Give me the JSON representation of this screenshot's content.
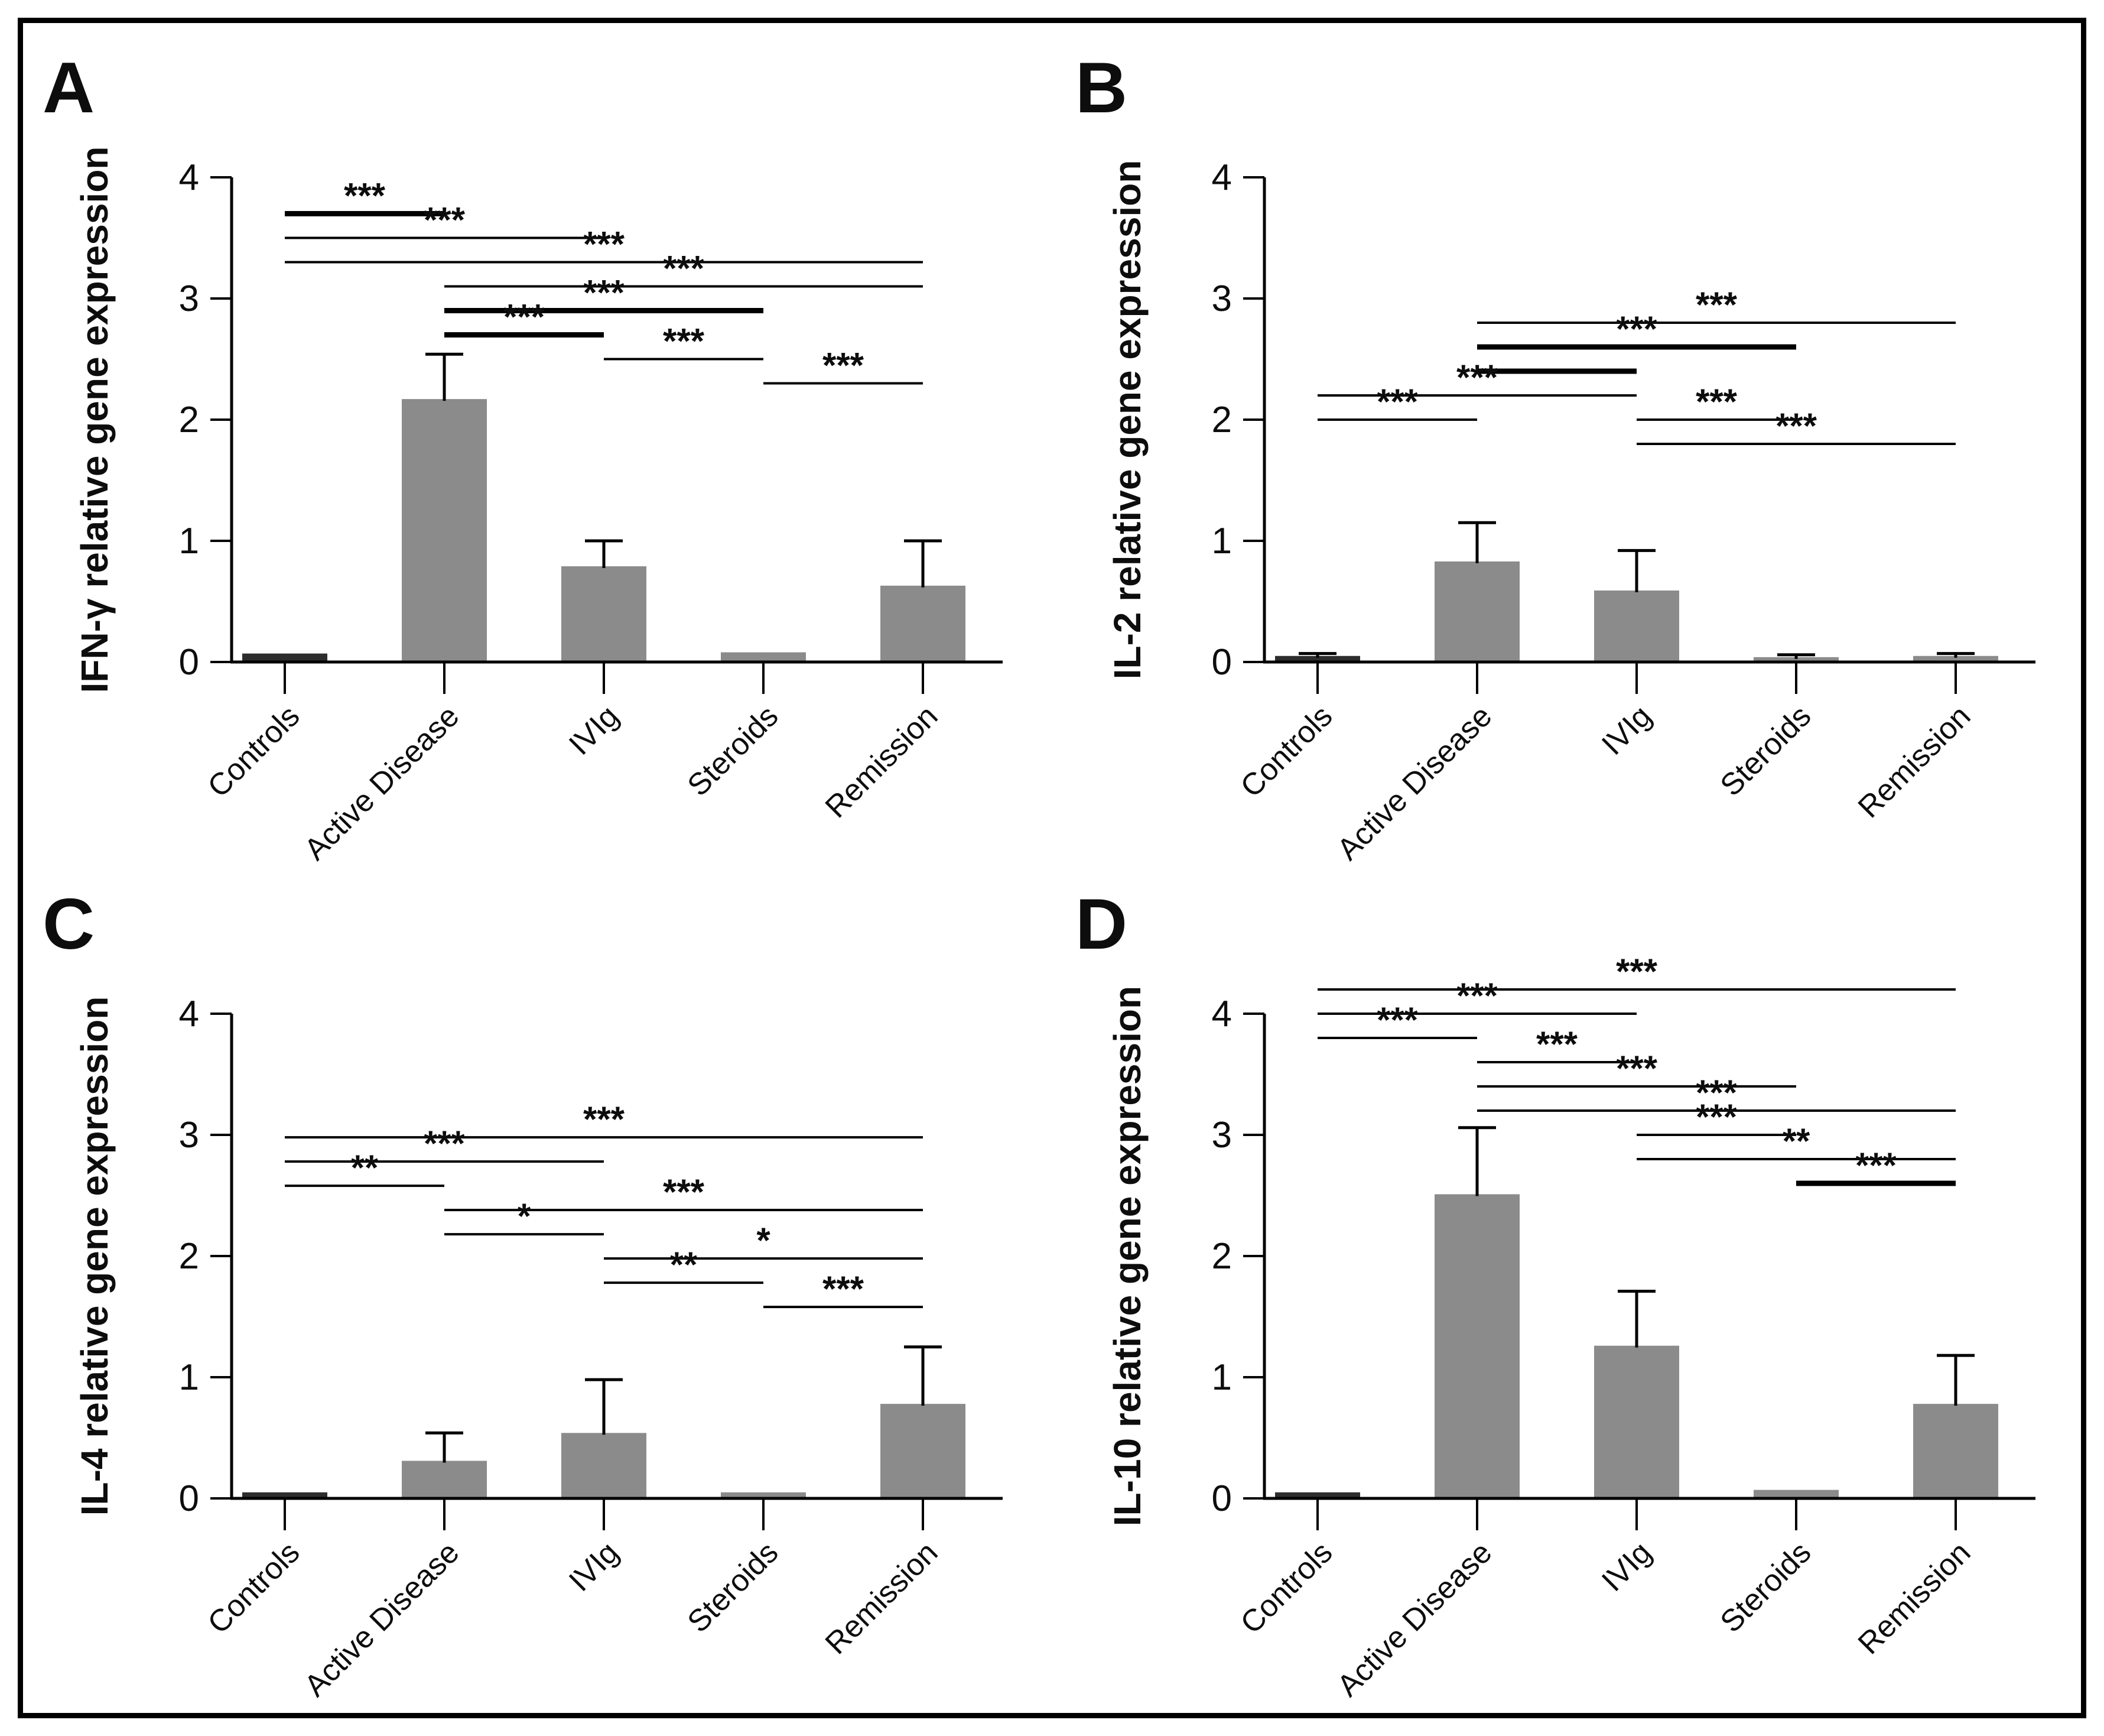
{
  "figure_style": {
    "bar_color": "#8b8b8b",
    "controls_bar_color": "#2d2d2d",
    "axis_color": "#000000",
    "text_color": "#0d0d0d",
    "background_color": "#ffffff"
  },
  "chart_data": [
    {
      "type": "bar",
      "panel": "A",
      "title": "",
      "ylabel": "IFN-γ relative gene expression",
      "xlabel": "",
      "ylim": [
        0,
        4
      ],
      "yticks": [
        "0",
        "1",
        "2",
        "3",
        "4"
      ],
      "grid": false,
      "categories": [
        "Controls",
        "Active Disease",
        "IVIg",
        "Steroids",
        "Remission"
      ],
      "values": [
        0.07,
        2.17,
        0.79,
        0.08,
        0.63
      ],
      "error_top": [
        null,
        2.54,
        1.0,
        null,
        1.0
      ],
      "significance": [
        {
          "between": [
            "Controls",
            "Active Disease"
          ],
          "from": 0,
          "to": 1,
          "y": 3.7,
          "label": "***",
          "thick": true
        },
        {
          "between": [
            "Controls",
            "IVIg"
          ],
          "from": 0,
          "to": 2,
          "y": 3.5,
          "label": "***",
          "thick": false
        },
        {
          "between": [
            "Controls",
            "Remission"
          ],
          "from": 0,
          "to": 4,
          "y": 3.3,
          "label": "***",
          "thick": false
        },
        {
          "between": [
            "Active Disease",
            "Remission"
          ],
          "from": 1,
          "to": 4,
          "y": 3.1,
          "label": "***",
          "thick": false
        },
        {
          "between": [
            "Active Disease",
            "Steroids"
          ],
          "from": 1,
          "to": 3,
          "y": 2.9,
          "label": "***",
          "thick": true
        },
        {
          "between": [
            "Active Disease",
            "IVIg"
          ],
          "from": 1,
          "to": 2,
          "y": 2.7,
          "label": "***",
          "thick": true
        },
        {
          "between": [
            "IVIg",
            "Steroids"
          ],
          "from": 2,
          "to": 3,
          "y": 2.5,
          "label": "***",
          "thick": false
        },
        {
          "between": [
            "Steroids",
            "Remission"
          ],
          "from": 3,
          "to": 4,
          "y": 2.3,
          "label": "***",
          "thick": false
        }
      ]
    },
    {
      "type": "bar",
      "panel": "B",
      "title": "",
      "ylabel": "IL-2 relative gene expression",
      "xlabel": "",
      "ylim": [
        0,
        4
      ],
      "yticks": [
        "0",
        "1",
        "2",
        "3",
        "4"
      ],
      "grid": false,
      "categories": [
        "Controls",
        "Active Disease",
        "IVIg",
        "Steroids",
        "Remission"
      ],
      "values": [
        0.05,
        0.83,
        0.59,
        0.04,
        0.05
      ],
      "error_top": [
        0.07,
        1.15,
        0.92,
        0.06,
        0.07
      ],
      "significance": [
        {
          "between": [
            "Active Disease",
            "Remission"
          ],
          "from": 1,
          "to": 4,
          "y": 2.8,
          "label": "***",
          "thick": false
        },
        {
          "between": [
            "Active Disease",
            "Steroids"
          ],
          "from": 1,
          "to": 3,
          "y": 2.6,
          "label": "***",
          "thick": true
        },
        {
          "between": [
            "Active Disease",
            "IVIg"
          ],
          "from": 1,
          "to": 2,
          "y": 2.4,
          "label": "",
          "thick": true
        },
        {
          "between": [
            "Controls",
            "IVIg"
          ],
          "from": 0,
          "to": 2,
          "y": 2.2,
          "label": "***",
          "thick": false
        },
        {
          "between": [
            "Controls",
            "Active Disease"
          ],
          "from": 0,
          "to": 1,
          "y": 2.0,
          "label": "***",
          "thick": false
        },
        {
          "between": [
            "IVIg",
            "Steroids"
          ],
          "from": 2,
          "to": 3,
          "y": 2.0,
          "label": "***",
          "thick": false
        },
        {
          "between": [
            "IVIg",
            "Remission"
          ],
          "from": 2,
          "to": 4,
          "y": 1.8,
          "label": "***",
          "thick": false
        }
      ]
    },
    {
      "type": "bar",
      "panel": "C",
      "title": "",
      "ylabel": "IL-4 relative gene expression",
      "xlabel": "",
      "ylim": [
        0,
        4
      ],
      "yticks": [
        "0",
        "1",
        "2",
        "3",
        "4"
      ],
      "grid": false,
      "categories": [
        "Controls",
        "Active Disease",
        "IVIg",
        "Steroids",
        "Remission"
      ],
      "values": [
        0.05,
        0.31,
        0.54,
        0.05,
        0.78
      ],
      "error_top": [
        null,
        0.54,
        0.98,
        null,
        1.25
      ],
      "significance": [
        {
          "between": [
            "Controls",
            "Remission"
          ],
          "from": 0,
          "to": 4,
          "y": 2.98,
          "label": "***",
          "thick": false
        },
        {
          "between": [
            "Controls",
            "IVIg"
          ],
          "from": 0,
          "to": 2,
          "y": 2.78,
          "label": "***",
          "thick": false
        },
        {
          "between": [
            "Controls",
            "Active Disease"
          ],
          "from": 0,
          "to": 1,
          "y": 2.58,
          "label": "**",
          "thick": false
        },
        {
          "between": [
            "Active Disease",
            "Remission"
          ],
          "from": 1,
          "to": 4,
          "y": 2.38,
          "label": "***",
          "thick": false
        },
        {
          "between": [
            "Active Disease",
            "IVIg"
          ],
          "from": 1,
          "to": 2,
          "y": 2.18,
          "label": "*",
          "thick": false
        },
        {
          "between": [
            "IVIg",
            "Remission"
          ],
          "from": 2,
          "to": 4,
          "y": 1.98,
          "label": "*",
          "thick": false
        },
        {
          "between": [
            "IVIg",
            "Steroids"
          ],
          "from": 2,
          "to": 3,
          "y": 1.78,
          "label": "**",
          "thick": false
        },
        {
          "between": [
            "Steroids",
            "Remission"
          ],
          "from": 3,
          "to": 4,
          "y": 1.58,
          "label": "***",
          "thick": false
        }
      ]
    },
    {
      "type": "bar",
      "panel": "D",
      "title": "",
      "ylabel": "IL-10 relative gene expression",
      "xlabel": "",
      "ylim": [
        0,
        4
      ],
      "yticks": [
        "0",
        "1",
        "2",
        "3",
        "4"
      ],
      "grid": false,
      "categories": [
        "Controls",
        "Active Disease",
        "IVIg",
        "Steroids",
        "Remission"
      ],
      "values": [
        0.05,
        2.51,
        1.26,
        0.07,
        0.78
      ],
      "error_top": [
        null,
        3.06,
        1.71,
        null,
        1.18
      ],
      "significance": [
        {
          "between": [
            "Controls",
            "Remission"
          ],
          "from": 0,
          "to": 4,
          "y": 4.2,
          "label": "***",
          "thick": false
        },
        {
          "between": [
            "Controls",
            "IVIg"
          ],
          "from": 0,
          "to": 2,
          "y": 4.0,
          "label": "***",
          "thick": false
        },
        {
          "between": [
            "Controls",
            "Active Disease"
          ],
          "from": 0,
          "to": 1,
          "y": 3.8,
          "label": "***",
          "thick": false
        },
        {
          "between": [
            "Active Disease",
            "IVIg"
          ],
          "from": 1,
          "to": 2,
          "y": 3.6,
          "label": "***",
          "thick": false
        },
        {
          "between": [
            "Active Disease",
            "Steroids"
          ],
          "from": 1,
          "to": 3,
          "y": 3.4,
          "label": "***",
          "thick": false
        },
        {
          "between": [
            "Active Disease",
            "Remission"
          ],
          "from": 1,
          "to": 4,
          "y": 3.2,
          "label": "***",
          "thick": false
        },
        {
          "between": [
            "IVIg",
            "Steroids"
          ],
          "from": 2,
          "to": 3,
          "y": 3.0,
          "label": "***",
          "thick": false
        },
        {
          "between": [
            "IVIg",
            "Remission"
          ],
          "from": 2,
          "to": 4,
          "y": 2.8,
          "label": "**",
          "thick": false
        },
        {
          "between": [
            "Steroids",
            "Remission"
          ],
          "from": 3,
          "to": 4,
          "y": 2.6,
          "label": "***",
          "thick": true
        }
      ]
    }
  ]
}
